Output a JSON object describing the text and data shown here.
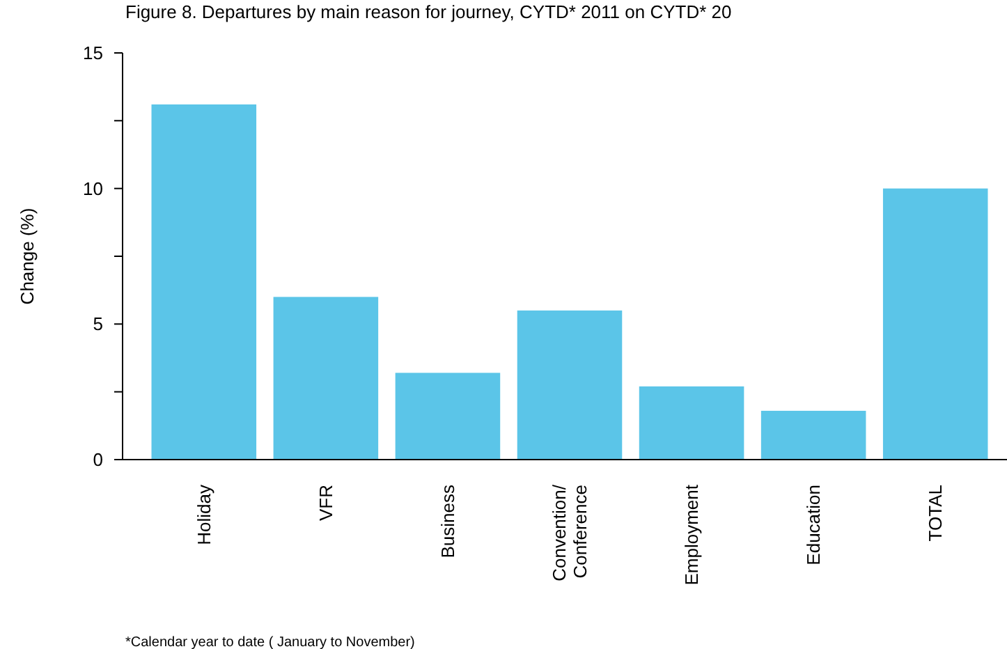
{
  "chart_data": {
    "type": "bar",
    "title": "Figure 8. Departures by main reason for journey, CYTD* 2011 on CYTD* 20",
    "ylabel": "Change (%)",
    "categories": [
      "Holiday",
      "VFR",
      "Business",
      "Convention/\nConference",
      "Employment",
      "Education",
      "TOTAL"
    ],
    "values": [
      13.1,
      6.0,
      3.2,
      5.5,
      2.7,
      1.8,
      10.0
    ],
    "color": "#5bc5e8",
    "ylim": [
      0,
      15
    ],
    "yticks": [
      0,
      {
        "value": 2.5,
        "label": null
      },
      5,
      {
        "value": 7.5,
        "label": null
      },
      10,
      {
        "value": 12.5,
        "label": null
      },
      15
    ],
    "grid": false,
    "annotations": [
      "*Calendar year to date ( January to November)"
    ]
  }
}
